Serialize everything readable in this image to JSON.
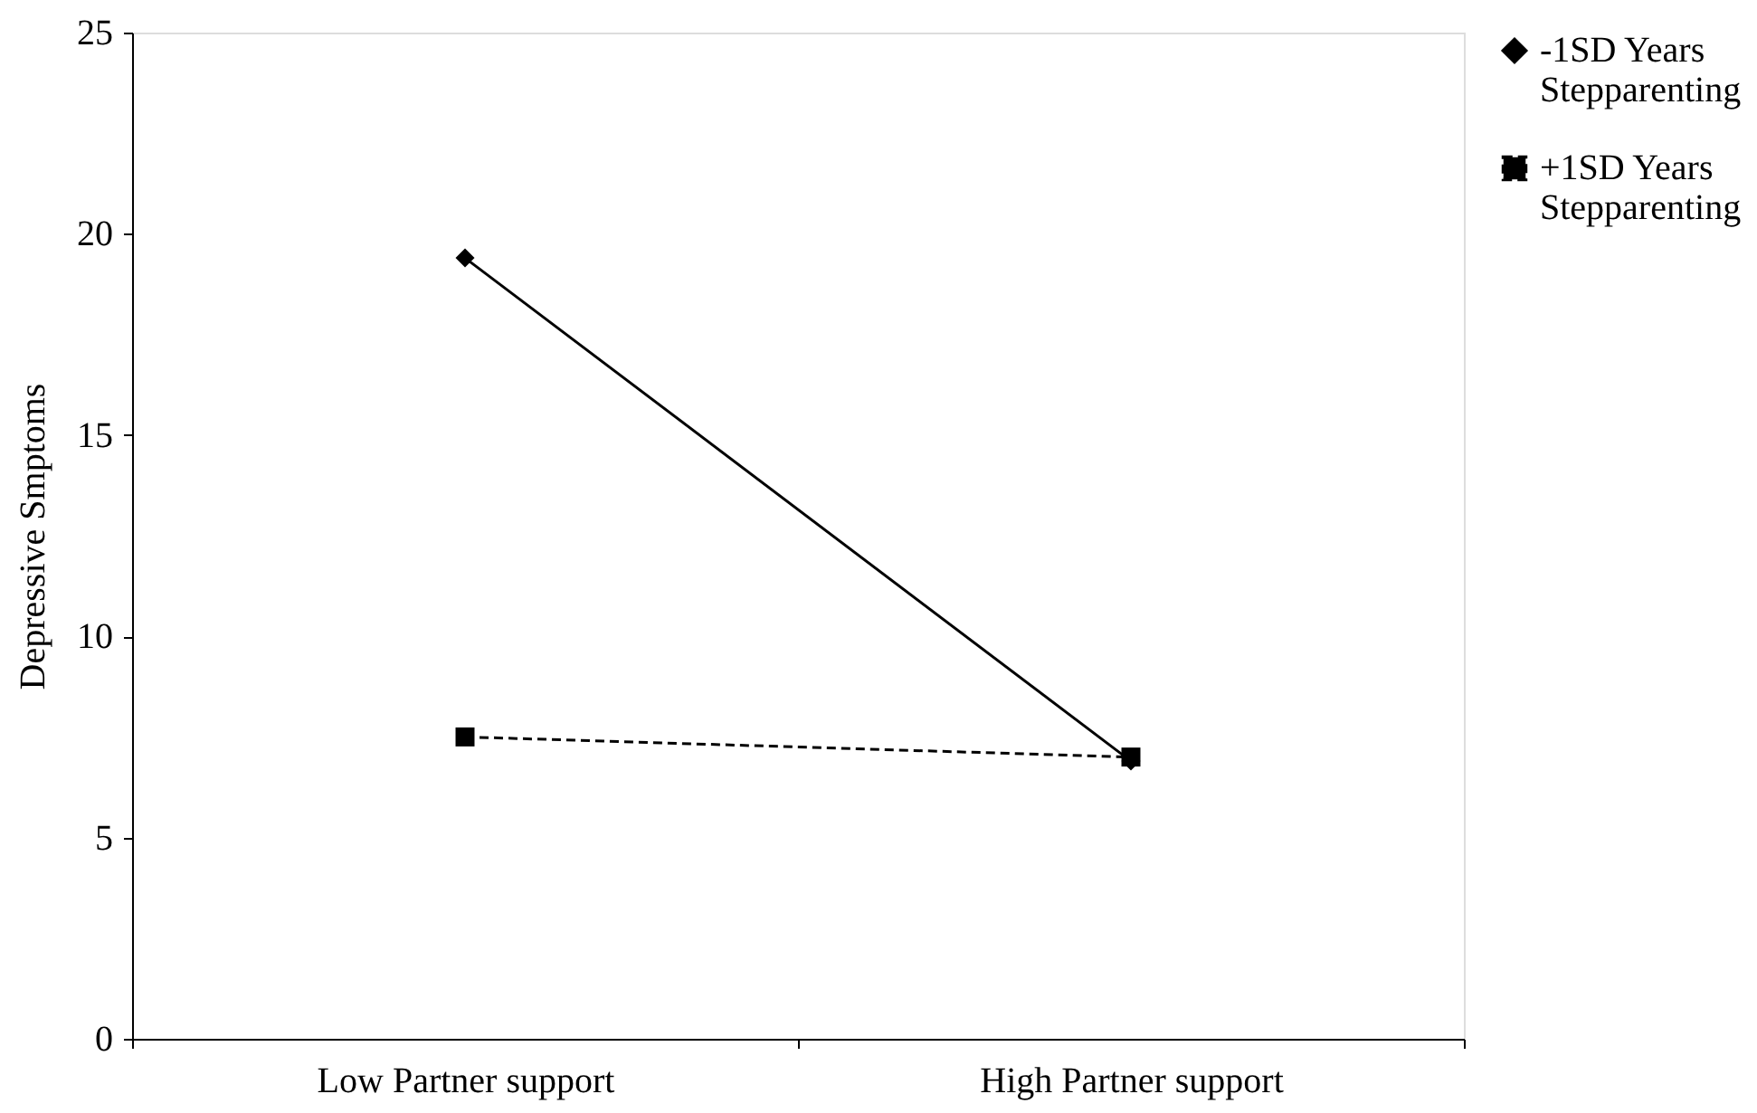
{
  "chart_data": {
    "type": "line",
    "ylabel": "Depressive Smptoms",
    "categories": [
      "Low Partner support",
      "High Partner support"
    ],
    "series": [
      {
        "name": "-1SD Years Stepparenting",
        "color": "#000000",
        "values": [
          19.4,
          6.9
        ],
        "marker": "diamond",
        "line_style": "solid"
      },
      {
        "name": "+1SD Years Stepparenting",
        "color": "#000000",
        "values": [
          7.5,
          7.0
        ],
        "marker": "square",
        "line_style": "dashed"
      }
    ],
    "ylim": [
      0,
      25
    ],
    "yticks": [
      0,
      5,
      10,
      15,
      20,
      25
    ],
    "grid": false,
    "legend": "right"
  }
}
